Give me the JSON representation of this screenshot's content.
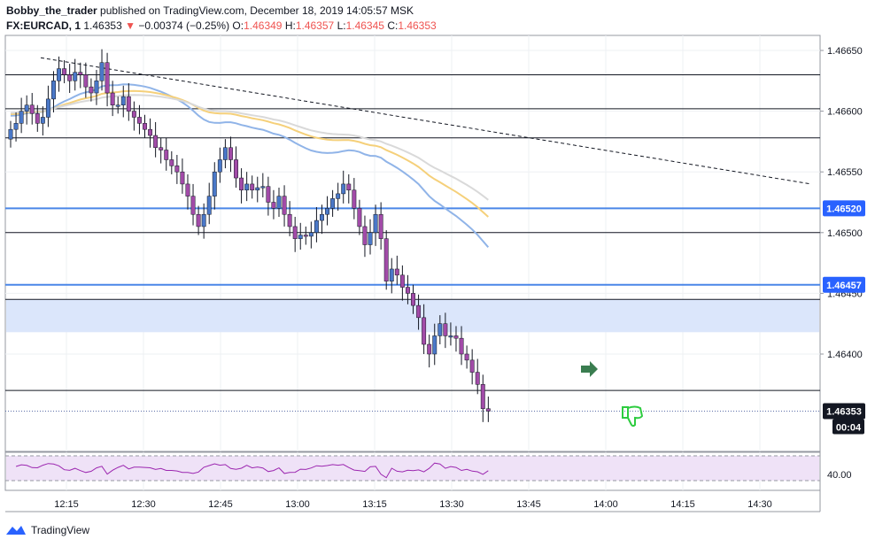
{
  "header": {
    "author": "Bobby_the_trader",
    "published_text": "published on TradingView.com, December 18, 2019 14:05:57 MSK",
    "symbol": "FX:EURCAD, 1",
    "last": "1.46353",
    "arrow": "▼",
    "change": "−0.00374 (−0.25%)",
    "o_label": "O:",
    "o": "1.46349",
    "h_label": "H:",
    "h": "1.46357",
    "l_label": "L:",
    "l": "1.46345",
    "c_label": "C:",
    "c": "1.46353"
  },
  "footer": {
    "brand": "TradingView"
  },
  "chart_data": {
    "type": "candlestick",
    "interval": "1 minute",
    "x_ticks": [
      "12:15",
      "12:30",
      "12:45",
      "13:00",
      "13:15",
      "13:30",
      "13:45",
      "14:00",
      "14:15",
      "14:30"
    ],
    "y_ticks": [
      "1.46650",
      "1.46600",
      "1.46550",
      "1.46500",
      "1.46450",
      "1.46400"
    ],
    "ylim": [
      1.4628,
      1.4668
    ],
    "price_labels": [
      {
        "text": "1.46520",
        "value": 1.4652,
        "color": "#2962ff"
      },
      {
        "text": "1.46457",
        "value": 1.46457,
        "color": "#2962ff"
      },
      {
        "text": "1.46353",
        "value": 1.46353,
        "color": "#131722"
      }
    ],
    "countdown": "00:04",
    "horizontal_levels": [
      1.4663,
      1.46602,
      1.46578,
      1.4652,
      1.465,
      1.46457,
      1.46445,
      1.4637
    ],
    "zone": [
      1.46418,
      1.46445
    ],
    "trendline": {
      "from": [
        "12:10",
        1.46644
      ],
      "to": [
        "14:40",
        1.4654
      ]
    },
    "candles_close": [
      1.46585,
      1.4659,
      1.466,
      1.46605,
      1.46598,
      1.4659,
      1.46595,
      1.4661,
      1.46625,
      1.46635,
      1.4663,
      1.46625,
      1.46632,
      1.4663,
      1.4662,
      1.46615,
      1.46625,
      1.4664,
      1.46615,
      1.46605,
      1.46605,
      1.46612,
      1.466,
      1.46595,
      1.4659,
      1.46585,
      1.4658,
      1.4657,
      1.46568,
      1.4656,
      1.46555,
      1.4655,
      1.4654,
      1.4653,
      1.46515,
      1.46505,
      1.46515,
      1.4653,
      1.4655,
      1.4656,
      1.4657,
      1.4656,
      1.46545,
      1.46535,
      1.4654,
      1.46535,
      1.46537,
      1.46538,
      1.46525,
      1.4652,
      1.4653,
      1.46515,
      1.46505,
      1.46495,
      1.46498,
      1.46497,
      1.465,
      1.4651,
      1.46515,
      1.4652,
      1.46528,
      1.46532,
      1.4654,
      1.46535,
      1.4652,
      1.46505,
      1.4649,
      1.465,
      1.46515,
      1.46495,
      1.4646,
      1.4647,
      1.46465,
      1.46455,
      1.4645,
      1.4644,
      1.4643,
      1.46408,
      1.464,
      1.46415,
      1.46425,
      1.46415,
      1.46415,
      1.46413,
      1.464,
      1.46395,
      1.46385,
      1.46375,
      1.46355,
      1.46353
    ],
    "moving_averages": [
      {
        "color": "#90b4e8",
        "end_value": 1.46488
      },
      {
        "color": "#f5d07a",
        "end_value": 1.46513
      },
      {
        "color": "#d9d9d9",
        "end_value": 1.46527
      }
    ],
    "oscillator": {
      "tick": "40.00",
      "band": [
        30,
        70
      ]
    },
    "colors": {
      "up": "#4a78c8",
      "down": "#a24ba8",
      "wick": "#131722",
      "level_blue": "#4a86e8",
      "zone": "#dbe6fb",
      "signal_arrow": "#3a7d50",
      "thumb": "#2ecc40"
    }
  }
}
